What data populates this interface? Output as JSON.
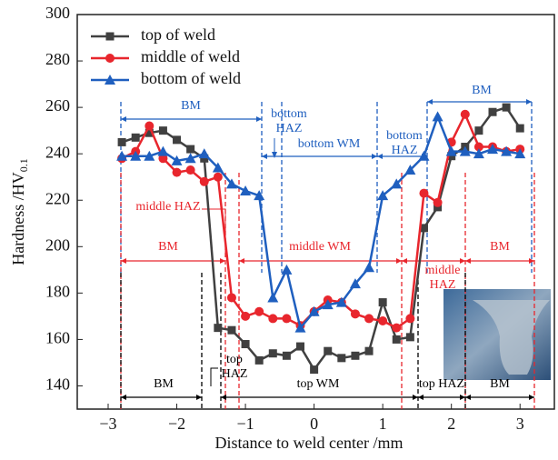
{
  "chart_data": {
    "type": "line",
    "xlabel": "Distance to weld center /mm",
    "ylabel": "Hardness /HV",
    "ylabel_sub": "0.1",
    "x": [
      -2.8,
      -2.6,
      -2.4,
      -2.2,
      -2.0,
      -1.8,
      -1.6,
      -1.4,
      -1.2,
      -1.0,
      -0.8,
      -0.6,
      -0.4,
      -0.2,
      0,
      0.2,
      0.4,
      0.6,
      0.8,
      1.0,
      1.2,
      1.4,
      1.6,
      1.8,
      2.0,
      2.2,
      2.4,
      2.6,
      2.8,
      3.0
    ],
    "series": [
      {
        "name": "top of weld",
        "color": "#404040",
        "marker": "square",
        "values": [
          245,
          247,
          249,
          250,
          246,
          242,
          238,
          165,
          164,
          158,
          151,
          154,
          153,
          157,
          147,
          155,
          152,
          153,
          155,
          176,
          160,
          161,
          208,
          217,
          239,
          243,
          250,
          258,
          260,
          251
        ]
      },
      {
        "name": "middle of weld",
        "color": "#e8262d",
        "marker": "circle",
        "values": [
          238,
          241,
          252,
          238,
          232,
          233,
          228,
          230,
          178,
          170,
          172,
          169,
          169,
          166,
          172,
          177,
          176,
          171,
          169,
          168,
          165,
          169,
          223,
          219,
          245,
          257,
          243,
          243,
          241,
          242
        ]
      },
      {
        "name": "bottom of weld",
        "color": "#1f5fbf",
        "marker": "triangle",
        "values": [
          239,
          239,
          239,
          241,
          237,
          238,
          240,
          234,
          227,
          224,
          222,
          178,
          190,
          165,
          172,
          175,
          176,
          184,
          191,
          222,
          227,
          233,
          239,
          256,
          241,
          241,
          240,
          242,
          241,
          240
        ]
      }
    ],
    "xlim": [
      -3.45,
      3.5
    ],
    "xticks": [
      {
        "value": -3,
        "label": "−3"
      },
      {
        "value": -2,
        "label": "−2"
      },
      {
        "value": -1,
        "label": "−1"
      },
      0,
      1,
      2,
      3
    ],
    "ylim": [
      130,
      300
    ],
    "yticks": [
      140,
      160,
      180,
      200,
      220,
      240,
      260,
      280,
      300
    ],
    "legend": "upper left",
    "annotations": [
      {
        "lines": [
          "BM"
        ],
        "color": "#1f5fbf"
      },
      {
        "lines": [
          "bottom",
          "HAZ"
        ],
        "color": "#1f5fbf"
      },
      {
        "lines": [
          "bottom WM"
        ],
        "color": "#1f5fbf"
      },
      {
        "lines": [
          "bottom",
          "HAZ"
        ],
        "color": "#1f5fbf"
      },
      {
        "lines": [
          "BM"
        ],
        "color": "#1f5fbf"
      },
      {
        "lines": [
          "middle HAZ"
        ],
        "color": "#e8262d"
      },
      {
        "lines": [
          "BM"
        ],
        "color": "#e8262d"
      },
      {
        "lines": [
          "middle WM"
        ],
        "color": "#e8262d"
      },
      {
        "lines": [
          "middle",
          "HAZ"
        ],
        "color": "#e8262d"
      },
      {
        "lines": [
          "BM"
        ],
        "color": "#e8262d"
      },
      {
        "lines": [
          "top",
          "HAZ"
        ],
        "color": "#000000"
      },
      {
        "lines": [
          "BM"
        ],
        "color": "#000000"
      },
      {
        "lines": [
          "top WM"
        ],
        "color": "#000000"
      },
      {
        "lines": [
          "top HAZ"
        ],
        "color": "#000000"
      },
      {
        "lines": [
          "BM"
        ],
        "color": "#000000"
      }
    ]
  }
}
